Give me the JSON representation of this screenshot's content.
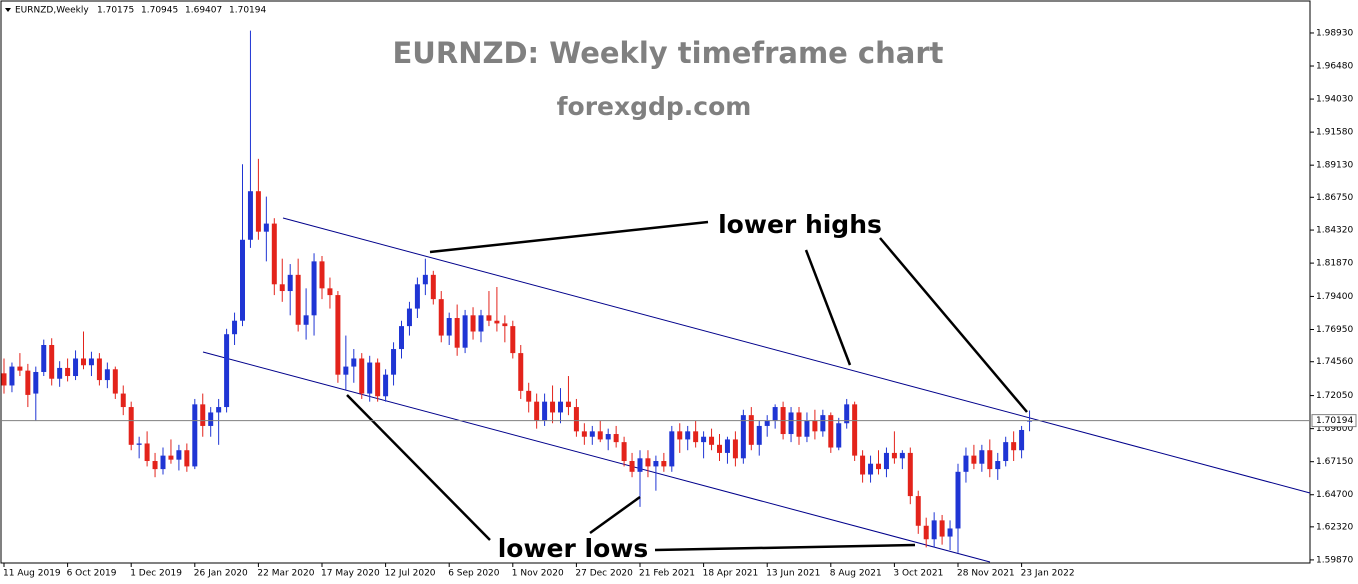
{
  "chart_data": {
    "type": "candlestick",
    "symbol": "EURNZD,Weekly",
    "title": "EURNZD: Weekly timeframe chart",
    "subtitle": "forexgdp.com",
    "annotations": [
      "lower highs",
      "lower lows"
    ],
    "up_color": "#1f35d4",
    "down_color": "#e3231b",
    "ylim": [
      1.5964,
      2.013
    ],
    "yticks": [
      {
        "value": 1.9893,
        "label": "1.98930"
      },
      {
        "value": 1.9648,
        "label": "1.96480"
      },
      {
        "value": 1.9403,
        "label": "1.94030"
      },
      {
        "value": 1.9158,
        "label": "1.91580"
      },
      {
        "value": 1.8913,
        "label": "1.89130"
      },
      {
        "value": 1.8675,
        "label": "1.86750"
      },
      {
        "value": 1.8432,
        "label": "1.84320"
      },
      {
        "value": 1.8187,
        "label": "1.81870"
      },
      {
        "value": 1.794,
        "label": "1.79400"
      },
      {
        "value": 1.7695,
        "label": "1.76950"
      },
      {
        "value": 1.7456,
        "label": "1.74560"
      },
      {
        "value": 1.7205,
        "label": "1.72050"
      },
      {
        "value": 1.696,
        "label": "1.69600"
      },
      {
        "value": 1.6715,
        "label": "1.67150"
      },
      {
        "value": 1.647,
        "label": "1.64700"
      },
      {
        "value": 1.6232,
        "label": "1.62320"
      },
      {
        "value": 1.5987,
        "label": "1.59870"
      }
    ],
    "categories": [
      "11 Aug 2019",
      null,
      null,
      null,
      null,
      null,
      null,
      null,
      "6 Oct 2019",
      null,
      null,
      null,
      null,
      null,
      null,
      null,
      "1 Dec 2019",
      null,
      null,
      null,
      null,
      null,
      null,
      null,
      "26 Jan 2020",
      null,
      null,
      null,
      null,
      null,
      null,
      null,
      "22 Mar 2020",
      null,
      null,
      null,
      null,
      null,
      null,
      null,
      "17 May 2020",
      null,
      null,
      null,
      null,
      null,
      null,
      null,
      "12 Jul 2020",
      null,
      null,
      null,
      null,
      null,
      null,
      null,
      "6 Sep 2020",
      null,
      null,
      null,
      null,
      null,
      null,
      null,
      "1 Nov 2020",
      null,
      null,
      null,
      null,
      null,
      null,
      null,
      "27 Dec 2020",
      null,
      null,
      null,
      null,
      null,
      null,
      null,
      "21 Feb 2021",
      null,
      null,
      null,
      null,
      null,
      null,
      null,
      "18 Apr 2021",
      null,
      null,
      null,
      null,
      null,
      null,
      null,
      "13 Jun 2021",
      null,
      null,
      null,
      null,
      null,
      null,
      null,
      "8 Aug 2021",
      null,
      null,
      null,
      null,
      null,
      null,
      null,
      "3 Oct 2021",
      null,
      null,
      null,
      null,
      null,
      null,
      null,
      "28 Nov 2021",
      null,
      null,
      null,
      null,
      null,
      null,
      null,
      "23 Jan 2022",
      null
    ],
    "ohlc": [
      [
        1.737,
        1.748,
        1.722,
        1.728
      ],
      [
        1.728,
        1.745,
        1.723,
        1.742
      ],
      [
        1.742,
        1.752,
        1.735,
        1.739
      ],
      [
        1.739,
        1.744,
        1.712,
        1.721
      ],
      [
        1.722,
        1.742,
        1.702,
        1.738
      ],
      [
        1.738,
        1.762,
        1.735,
        1.758
      ],
      [
        1.758,
        1.763,
        1.728,
        1.733
      ],
      [
        1.733,
        1.746,
        1.727,
        1.741
      ],
      [
        1.741,
        1.748,
        1.731,
        1.735
      ],
      [
        1.735,
        1.754,
        1.732,
        1.748
      ],
      [
        1.748,
        1.768,
        1.74,
        1.743
      ],
      [
        1.743,
        1.753,
        1.735,
        1.748
      ],
      [
        1.748,
        1.752,
        1.728,
        1.732
      ],
      [
        1.732,
        1.745,
        1.726,
        1.74
      ],
      [
        1.74,
        1.742,
        1.718,
        1.722
      ],
      [
        1.722,
        1.728,
        1.706,
        1.712
      ],
      [
        1.712,
        1.716,
        1.68,
        1.684
      ],
      [
        1.684,
        1.69,
        1.674,
        1.685
      ],
      [
        1.685,
        1.694,
        1.668,
        1.672
      ],
      [
        1.672,
        1.678,
        1.66,
        1.666
      ],
      [
        1.666,
        1.682,
        1.662,
        1.676
      ],
      [
        1.676,
        1.688,
        1.67,
        1.673
      ],
      [
        1.673,
        1.684,
        1.665,
        1.68
      ],
      [
        1.68,
        1.685,
        1.664,
        1.668
      ],
      [
        1.668,
        1.718,
        1.666,
        1.714
      ],
      [
        1.714,
        1.722,
        1.69,
        1.698
      ],
      [
        1.698,
        1.712,
        1.69,
        1.708
      ],
      [
        1.708,
        1.718,
        1.684,
        1.712
      ],
      [
        1.712,
        1.77,
        1.708,
        1.766
      ],
      [
        1.766,
        1.782,
        1.758,
        1.776
      ],
      [
        1.776,
        1.892,
        1.772,
        1.836
      ],
      [
        1.836,
        1.991,
        1.83,
        1.872
      ],
      [
        1.872,
        1.896,
        1.836,
        1.842
      ],
      [
        1.842,
        1.868,
        1.82,
        1.848
      ],
      [
        1.848,
        1.852,
        1.795,
        1.803
      ],
      [
        1.803,
        1.822,
        1.79,
        1.798
      ],
      [
        1.798,
        1.818,
        1.78,
        1.81
      ],
      [
        1.81,
        1.822,
        1.768,
        1.773
      ],
      [
        1.773,
        1.8,
        1.762,
        1.78
      ],
      [
        1.78,
        1.826,
        1.765,
        1.82
      ],
      [
        1.82,
        1.824,
        1.792,
        1.8
      ],
      [
        1.8,
        1.808,
        1.785,
        1.795
      ],
      [
        1.795,
        1.798,
        1.73,
        1.736
      ],
      [
        1.736,
        1.765,
        1.725,
        1.742
      ],
      [
        1.742,
        1.755,
        1.73,
        1.748
      ],
      [
        1.748,
        1.752,
        1.718,
        1.722
      ],
      [
        1.722,
        1.75,
        1.716,
        1.745
      ],
      [
        1.745,
        1.748,
        1.716,
        1.72
      ],
      [
        1.72,
        1.74,
        1.716,
        1.736
      ],
      [
        1.736,
        1.76,
        1.728,
        1.755
      ],
      [
        1.755,
        1.776,
        1.748,
        1.772
      ],
      [
        1.772,
        1.79,
        1.765,
        1.785
      ],
      [
        1.785,
        1.808,
        1.778,
        1.803
      ],
      [
        1.803,
        1.822,
        1.795,
        1.81
      ],
      [
        1.81,
        1.813,
        1.788,
        1.792
      ],
      [
        1.792,
        1.798,
        1.76,
        1.765
      ],
      [
        1.765,
        1.782,
        1.758,
        1.778
      ],
      [
        1.778,
        1.788,
        1.75,
        1.756
      ],
      [
        1.756,
        1.784,
        1.752,
        1.78
      ],
      [
        1.78,
        1.786,
        1.762,
        1.768
      ],
      [
        1.768,
        1.784,
        1.76,
        1.78
      ],
      [
        1.78,
        1.798,
        1.772,
        1.776
      ],
      [
        1.776,
        1.801,
        1.768,
        1.774
      ],
      [
        1.774,
        1.78,
        1.76,
        1.772
      ],
      [
        1.772,
        1.776,
        1.748,
        1.752
      ],
      [
        1.752,
        1.758,
        1.718,
        1.724
      ],
      [
        1.724,
        1.73,
        1.708,
        1.716
      ],
      [
        1.716,
        1.722,
        1.696,
        1.702
      ],
      [
        1.702,
        1.722,
        1.698,
        1.716
      ],
      [
        1.716,
        1.728,
        1.7,
        1.708
      ],
      [
        1.708,
        1.726,
        1.7,
        1.716
      ],
      [
        1.716,
        1.735,
        1.706,
        1.712
      ],
      [
        1.712,
        1.718,
        1.69,
        1.694
      ],
      [
        1.694,
        1.7,
        1.684,
        1.69
      ],
      [
        1.69,
        1.698,
        1.684,
        1.694
      ],
      [
        1.694,
        1.702,
        1.686,
        1.688
      ],
      [
        1.688,
        1.696,
        1.68,
        1.692
      ],
      [
        1.692,
        1.698,
        1.682,
        1.686
      ],
      [
        1.686,
        1.69,
        1.668,
        1.672
      ],
      [
        1.672,
        1.678,
        1.66,
        1.664
      ],
      [
        1.664,
        1.68,
        1.638,
        1.674
      ],
      [
        1.674,
        1.68,
        1.66,
        1.668
      ],
      [
        1.668,
        1.676,
        1.65,
        1.672
      ],
      [
        1.672,
        1.678,
        1.664,
        1.668
      ],
      [
        1.668,
        1.698,
        1.664,
        1.694
      ],
      [
        1.694,
        1.7,
        1.678,
        1.688
      ],
      [
        1.688,
        1.698,
        1.68,
        1.694
      ],
      [
        1.694,
        1.702,
        1.682,
        1.686
      ],
      [
        1.686,
        1.694,
        1.674,
        1.69
      ],
      [
        1.69,
        1.696,
        1.68,
        1.684
      ],
      [
        1.684,
        1.692,
        1.672,
        1.678
      ],
      [
        1.678,
        1.69,
        1.67,
        1.688
      ],
      [
        1.688,
        1.694,
        1.668,
        1.674
      ],
      [
        1.674,
        1.71,
        1.67,
        1.706
      ],
      [
        1.706,
        1.712,
        1.68,
        1.684
      ],
      [
        1.684,
        1.702,
        1.676,
        1.698
      ],
      [
        1.698,
        1.706,
        1.69,
        1.702
      ],
      [
        1.702,
        1.714,
        1.696,
        1.712
      ],
      [
        1.712,
        1.716,
        1.688,
        1.692
      ],
      [
        1.692,
        1.712,
        1.686,
        1.708
      ],
      [
        1.708,
        1.712,
        1.684,
        1.69
      ],
      [
        1.69,
        1.708,
        1.686,
        1.702
      ],
      [
        1.702,
        1.71,
        1.688,
        1.694
      ],
      [
        1.694,
        1.71,
        1.69,
        1.706
      ],
      [
        1.706,
        1.708,
        1.678,
        1.682
      ],
      [
        1.682,
        1.704,
        1.68,
        1.7
      ],
      [
        1.7,
        1.718,
        1.696,
        1.714
      ],
      [
        1.714,
        1.716,
        1.672,
        1.676
      ],
      [
        1.676,
        1.68,
        1.656,
        1.662
      ],
      [
        1.662,
        1.676,
        1.656,
        1.67
      ],
      [
        1.67,
        1.68,
        1.662,
        1.666
      ],
      [
        1.666,
        1.682,
        1.66,
        1.678
      ],
      [
        1.678,
        1.694,
        1.67,
        1.674
      ],
      [
        1.674,
        1.68,
        1.666,
        1.678
      ],
      [
        1.678,
        1.682,
        1.64,
        1.646
      ],
      [
        1.646,
        1.65,
        1.618,
        1.624
      ],
      [
        1.624,
        1.63,
        1.608,
        1.614
      ],
      [
        1.614,
        1.634,
        1.608,
        1.628
      ],
      [
        1.628,
        1.632,
        1.61,
        1.616
      ],
      [
        1.616,
        1.628,
        1.606,
        1.622
      ],
      [
        1.622,
        1.67,
        1.604,
        1.664
      ],
      [
        1.664,
        1.682,
        1.656,
        1.676
      ],
      [
        1.676,
        1.684,
        1.666,
        1.67
      ],
      [
        1.67,
        1.684,
        1.664,
        1.68
      ],
      [
        1.68,
        1.688,
        1.66,
        1.666
      ],
      [
        1.666,
        1.678,
        1.658,
        1.672
      ],
      [
        1.672,
        1.69,
        1.668,
        1.686
      ],
      [
        1.686,
        1.694,
        1.672,
        1.68
      ],
      [
        1.68,
        1.698,
        1.674,
        1.695
      ],
      [
        1.70175,
        1.70945,
        1.69407,
        1.70194
      ]
    ]
  }
}
